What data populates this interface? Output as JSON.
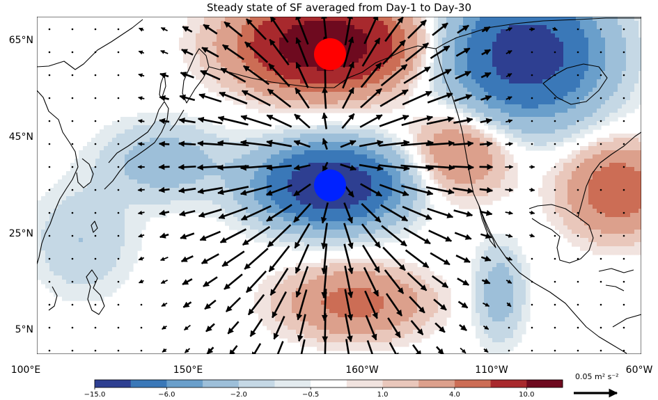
{
  "chart_data": {
    "type": "contour-map with vector overlay",
    "title": "Steady state of SF averaged from Day-1 to Day-30",
    "x_ticks": [
      "100°E",
      "150°E",
      "160°W",
      "110°W",
      "60°W"
    ],
    "y_ticks": [
      "65°N",
      "45°N",
      "25°N",
      "5°N"
    ],
    "colorbar": {
      "tick_labels": [
        "−15.0",
        "−6.0",
        "−2.0",
        "−0.5",
        "1.0",
        "4.0",
        "10.0"
      ],
      "levels": [
        -15.0,
        -10.0,
        -6.0,
        -4.0,
        -2.0,
        -1.0,
        -0.5,
        0.5,
        1.0,
        2.0,
        4.0,
        6.0,
        10.0,
        15.0
      ],
      "colors": [
        "#2e3f91",
        "#3a78b8",
        "#6a9fcb",
        "#9dbfd9",
        "#c5d8e5",
        "#e3ebef",
        "#ffffff",
        "#f1e3df",
        "#e9c7bb",
        "#dca08c",
        "#cc6d55",
        "#a8292d",
        "#6e0a1f"
      ]
    },
    "vector_key": {
      "label": "0.05 m² s⁻²"
    },
    "markers": [
      {
        "name": "positive center",
        "color": "#ff0000",
        "lon": 197,
        "lat": 62
      },
      {
        "name": "negative center",
        "color": "#0022ff",
        "lon": 197,
        "lat": 34
      }
    ],
    "extent": {
      "lon": [
        100,
        300
      ],
      "lat": [
        -2,
        70
      ]
    },
    "anomaly_centers": [
      {
        "lon": 195,
        "lat": 64,
        "value": 14
      },
      {
        "lon": 262,
        "lat": 62,
        "value": -13
      },
      {
        "lon": 197,
        "lat": 34,
        "value": -15
      },
      {
        "lon": 142,
        "lat": 39,
        "value": -3
      },
      {
        "lon": 115,
        "lat": 22,
        "value": -2
      },
      {
        "lon": 240,
        "lat": 41,
        "value": 4
      },
      {
        "lon": 292,
        "lat": 33,
        "value": 6
      },
      {
        "lon": 205,
        "lat": 9,
        "value": 5
      },
      {
        "lon": 253,
        "lat": 11,
        "value": -3
      }
    ]
  }
}
